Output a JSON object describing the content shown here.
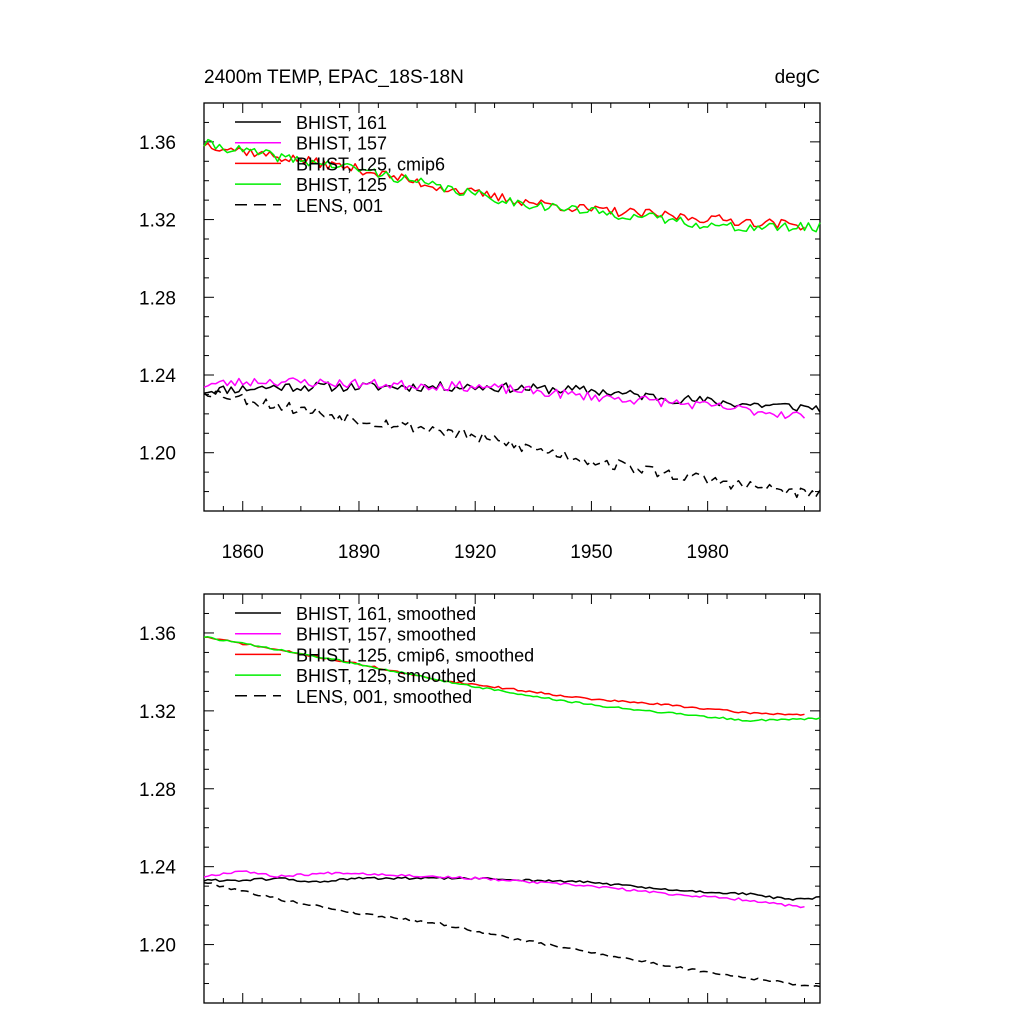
{
  "title_left": "2400m TEMP, EPAC_18S-18N",
  "title_right": "degC",
  "chart_data": [
    {
      "type": "line",
      "panel": "top",
      "xlim": [
        1850,
        2009
      ],
      "ylim": [
        1.17,
        1.38
      ],
      "x_ticks": [
        1860,
        1890,
        1920,
        1950,
        1980
      ],
      "x_tick_labels": [
        "1860",
        "1890",
        "1920",
        "1950",
        "1980"
      ],
      "y_ticks": [
        1.2,
        1.24,
        1.28,
        1.32,
        1.36
      ],
      "y_tick_labels": [
        "1.20",
        "1.24",
        "1.28",
        "1.32",
        "1.36"
      ],
      "legend_position": "top-left",
      "series": [
        {
          "name": "BHIST, 161",
          "color": "#000000",
          "dash": "solid",
          "x_range": [
            1850,
            2009
          ],
          "noise": 0.0025,
          "seed": 11,
          "trend": [
            [
              1850,
              1.232
            ],
            [
              1870,
              1.234
            ],
            [
              1890,
              1.234
            ],
            [
              1920,
              1.234
            ],
            [
              1950,
              1.232
            ],
            [
              1970,
              1.228
            ],
            [
              1990,
              1.225
            ],
            [
              2009,
              1.223
            ]
          ]
        },
        {
          "name": "BHIST, 157",
          "color": "#ff00ff",
          "dash": "solid",
          "x_range": [
            1850,
            2005
          ],
          "noise": 0.0025,
          "seed": 23,
          "trend": [
            [
              1850,
              1.235
            ],
            [
              1865,
              1.237
            ],
            [
              1880,
              1.236
            ],
            [
              1920,
              1.234
            ],
            [
              1950,
              1.229
            ],
            [
              1970,
              1.226
            ],
            [
              1990,
              1.222
            ],
            [
              2005,
              1.219
            ]
          ]
        },
        {
          "name": "BHIST, 125, cmip6",
          "color": "#ff0000",
          "dash": "solid",
          "x_range": [
            1850,
            2005
          ],
          "noise": 0.0025,
          "seed": 37,
          "trend": [
            [
              1850,
              1.359
            ],
            [
              1870,
              1.352
            ],
            [
              1890,
              1.346
            ],
            [
              1910,
              1.337
            ],
            [
              1930,
              1.33
            ],
            [
              1950,
              1.325
            ],
            [
              1970,
              1.322
            ],
            [
              1990,
              1.319
            ],
            [
              2005,
              1.317
            ]
          ]
        },
        {
          "name": "BHIST, 125",
          "color": "#00ee00",
          "dash": "solid",
          "x_range": [
            1850,
            2009
          ],
          "noise": 0.0025,
          "seed": 41,
          "trend": [
            [
              1850,
              1.359
            ],
            [
              1870,
              1.352
            ],
            [
              1890,
              1.346
            ],
            [
              1910,
              1.337
            ],
            [
              1930,
              1.329
            ],
            [
              1950,
              1.324
            ],
            [
              1970,
              1.32
            ],
            [
              1985,
              1.316
            ],
            [
              2009,
              1.316
            ]
          ]
        },
        {
          "name": "LENS, 001",
          "color": "#000000",
          "dash": "dashed",
          "x_range": [
            1850,
            2009
          ],
          "noise": 0.003,
          "seed": 53,
          "trend": [
            [
              1850,
              1.232
            ],
            [
              1870,
              1.224
            ],
            [
              1890,
              1.217
            ],
            [
              1910,
              1.212
            ],
            [
              1930,
              1.204
            ],
            [
              1950,
              1.196
            ],
            [
              1970,
              1.189
            ],
            [
              1990,
              1.183
            ],
            [
              2009,
              1.178
            ]
          ]
        }
      ]
    },
    {
      "type": "line",
      "panel": "bottom",
      "xlim": [
        1850,
        2009
      ],
      "ylim": [
        1.17,
        1.38
      ],
      "x_ticks": [
        1860,
        1890,
        1920,
        1950,
        1980
      ],
      "y_ticks": [
        1.2,
        1.24,
        1.28,
        1.32,
        1.36
      ],
      "y_tick_labels": [
        "1.20",
        "1.24",
        "1.28",
        "1.32",
        "1.36"
      ],
      "legend_position": "top-left",
      "series": [
        {
          "name": "BHIST, 161, smoothed",
          "color": "#000000",
          "dash": "solid",
          "x_range": [
            1850,
            2009
          ],
          "noise": 0.0006,
          "seed": 61,
          "trend": [
            [
              1850,
              1.233
            ],
            [
              1860,
              1.233
            ],
            [
              1870,
              1.234
            ],
            [
              1878,
              1.232
            ],
            [
              1890,
              1.234
            ],
            [
              1920,
              1.234
            ],
            [
              1950,
              1.232
            ],
            [
              1970,
              1.228
            ],
            [
              1990,
              1.226
            ],
            [
              2002,
              1.223
            ],
            [
              2009,
              1.224
            ]
          ]
        },
        {
          "name": "BHIST, 157, smoothed",
          "color": "#ff00ff",
          "dash": "solid",
          "x_range": [
            1850,
            2005
          ],
          "noise": 0.0006,
          "seed": 67,
          "trend": [
            [
              1850,
              1.235
            ],
            [
              1860,
              1.238
            ],
            [
              1868,
              1.235
            ],
            [
              1885,
              1.237
            ],
            [
              1920,
              1.234
            ],
            [
              1950,
              1.23
            ],
            [
              1970,
              1.226
            ],
            [
              1990,
              1.223
            ],
            [
              2005,
              1.219
            ]
          ]
        },
        {
          "name": "BHIST, 125, cmip6, smoothed",
          "color": "#ff0000",
          "dash": "solid",
          "x_range": [
            1850,
            2005
          ],
          "noise": 0.0005,
          "seed": 71,
          "trend": [
            [
              1850,
              1.358
            ],
            [
              1870,
              1.351
            ],
            [
              1890,
              1.344
            ],
            [
              1910,
              1.336
            ],
            [
              1930,
              1.331
            ],
            [
              1950,
              1.326
            ],
            [
              1970,
              1.323
            ],
            [
              1990,
              1.319
            ],
            [
              2005,
              1.318
            ]
          ]
        },
        {
          "name": "BHIST, 125, smoothed",
          "color": "#00ee00",
          "dash": "solid",
          "x_range": [
            1850,
            2009
          ],
          "noise": 0.0005,
          "seed": 73,
          "trend": [
            [
              1850,
              1.358
            ],
            [
              1870,
              1.351
            ],
            [
              1890,
              1.344
            ],
            [
              1910,
              1.336
            ],
            [
              1930,
              1.329
            ],
            [
              1950,
              1.323
            ],
            [
              1970,
              1.319
            ],
            [
              1990,
              1.315
            ],
            [
              2009,
              1.316
            ]
          ]
        },
        {
          "name": "LENS, 001, smoothed",
          "color": "#000000",
          "dash": "dashed",
          "x_range": [
            1850,
            2009
          ],
          "noise": 0.0006,
          "seed": 79,
          "trend": [
            [
              1850,
              1.232
            ],
            [
              1870,
              1.223
            ],
            [
              1890,
              1.216
            ],
            [
              1910,
              1.211
            ],
            [
              1930,
              1.203
            ],
            [
              1950,
              1.196
            ],
            [
              1970,
              1.189
            ],
            [
              1990,
              1.183
            ],
            [
              2009,
              1.178
            ]
          ]
        }
      ]
    }
  ]
}
